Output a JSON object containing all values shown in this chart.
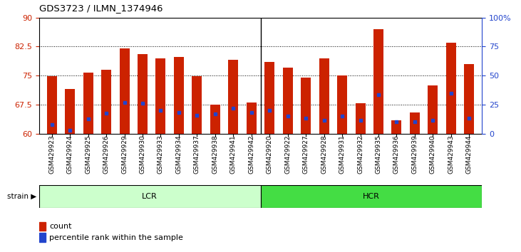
{
  "title": "GDS3723 / ILMN_1374946",
  "samples": [
    "GSM429923",
    "GSM429924",
    "GSM429925",
    "GSM429926",
    "GSM429929",
    "GSM429930",
    "GSM429933",
    "GSM429934",
    "GSM429937",
    "GSM429938",
    "GSM429941",
    "GSM429942",
    "GSM429920",
    "GSM429922",
    "GSM429927",
    "GSM429928",
    "GSM429931",
    "GSM429932",
    "GSM429935",
    "GSM429936",
    "GSM429939",
    "GSM429940",
    "GSM429943",
    "GSM429944"
  ],
  "bar_heights": [
    74.8,
    71.5,
    75.8,
    76.5,
    82.0,
    80.5,
    79.5,
    79.8,
    74.8,
    67.5,
    79.0,
    68.0,
    78.5,
    77.0,
    74.5,
    79.5,
    75.0,
    67.8,
    87.0,
    63.5,
    65.5,
    72.5,
    83.5,
    78.0
  ],
  "blue_dots": [
    62.3,
    60.8,
    63.8,
    65.2,
    68.0,
    67.8,
    66.0,
    65.5,
    64.8,
    65.0,
    66.5,
    65.5,
    66.0,
    64.5,
    64.0,
    63.5,
    64.5,
    63.5,
    70.0,
    63.0,
    63.0,
    63.5,
    70.5,
    64.0
  ],
  "lcr_count": 12,
  "hcr_count": 12,
  "ylim_left": [
    60,
    90
  ],
  "yticks_left": [
    60,
    67.5,
    75,
    82.5,
    90
  ],
  "ytick_labels_left": [
    "60",
    "67.5",
    "75",
    "82.5",
    "90"
  ],
  "yticks_right_vals": [
    60,
    67.5,
    75,
    82.5,
    90
  ],
  "yticks_right": [
    0,
    25,
    50,
    75,
    100
  ],
  "ytick_labels_right": [
    "0",
    "25",
    "50",
    "75",
    "100%"
  ],
  "bar_color": "#cc2200",
  "dot_color": "#2244cc",
  "lcr_color": "#ccffcc",
  "hcr_color": "#44dd44",
  "tick_label_color_left": "#cc2200",
  "tick_label_color_right": "#2244cc",
  "bar_width": 0.55,
  "legend_count": "count",
  "legend_pct": "percentile rank within the sample",
  "strain_label": "strain"
}
